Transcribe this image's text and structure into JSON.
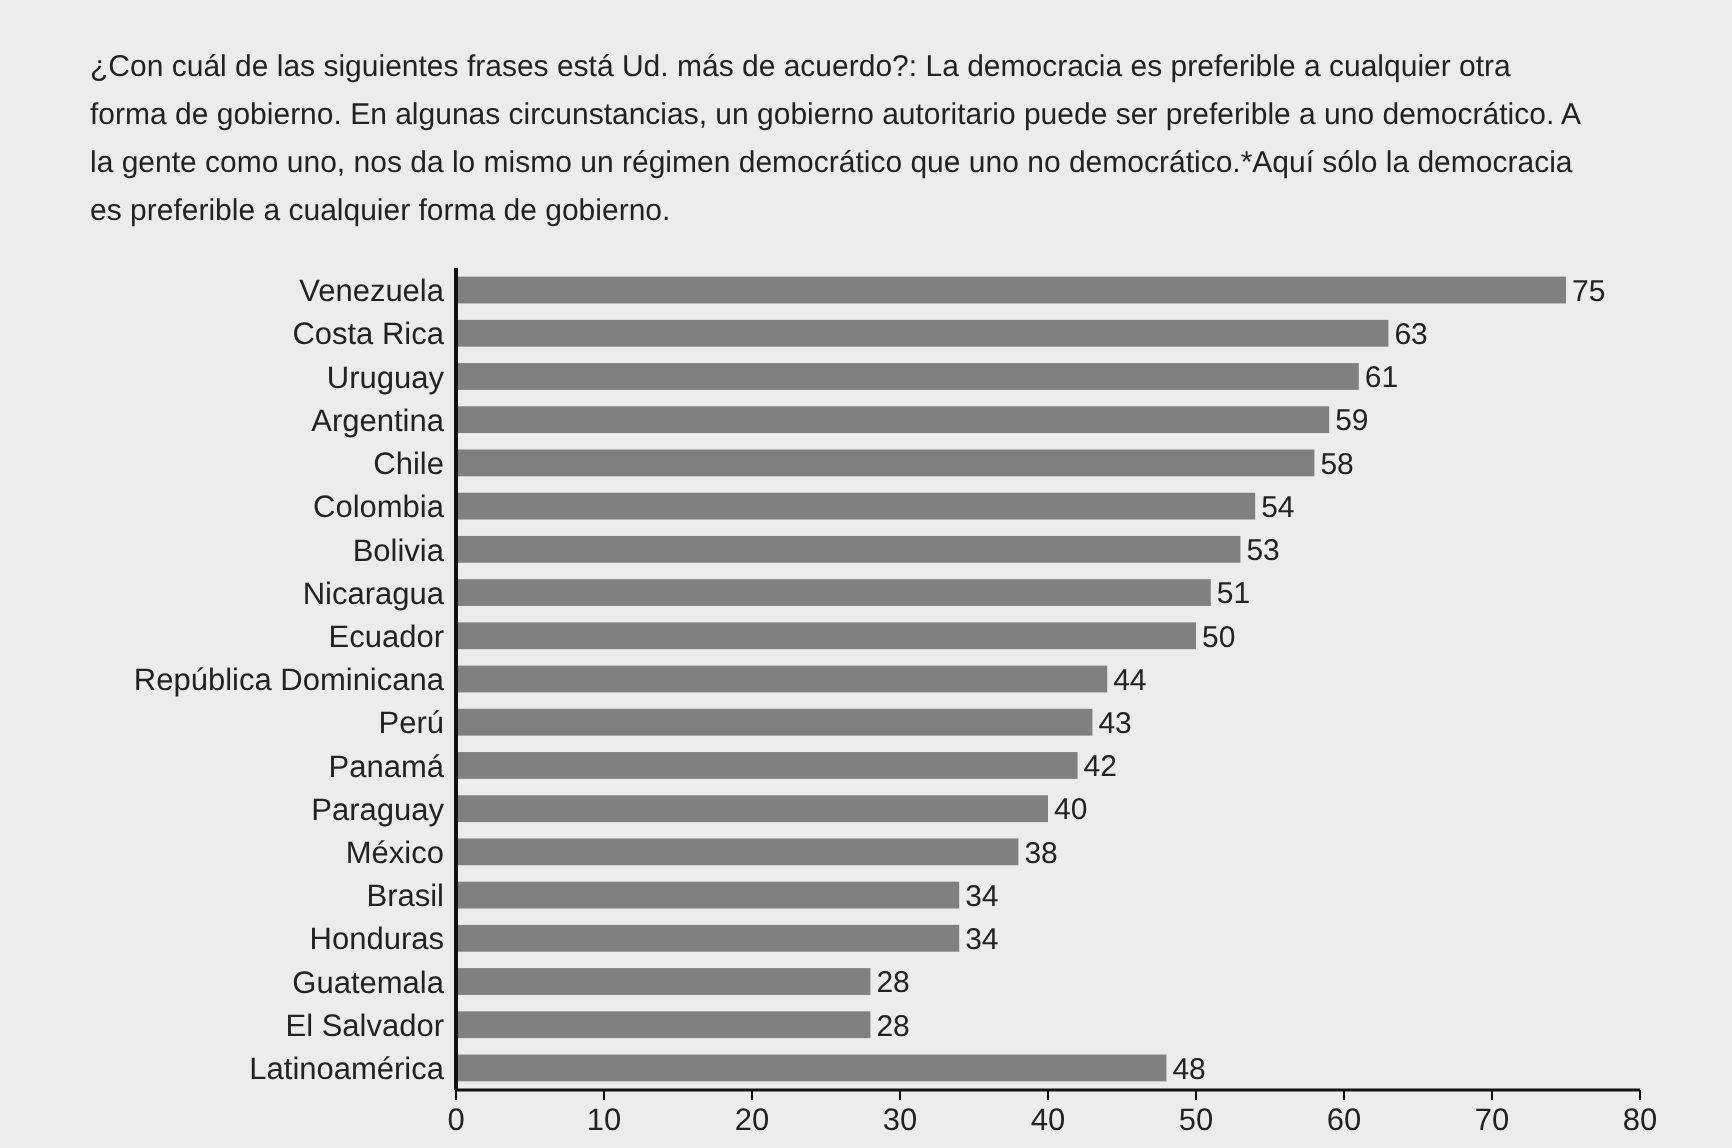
{
  "chart_data": {
    "type": "bar",
    "orientation": "horizontal",
    "title": "¿Con cuál de las siguientes frases está Ud. más de acuerdo?: La democracia es preferible a cualquier otra forma de gobierno. En algunas circunstancias, un gobierno autoritario puede ser preferible a uno democrático. A la gente como uno, nos da lo mismo un régimen democrático que uno no democrático.*Aquí sólo la democracia es preferible a cualquier forma de gobierno.",
    "categories": [
      "Venezuela",
      "Costa Rica",
      "Uruguay",
      "Argentina",
      "Chile",
      "Colombia",
      "Bolivia",
      "Nicaragua",
      "Ecuador",
      "República Dominicana",
      "Perú",
      "Panamá",
      "Paraguay",
      "México",
      "Brasil",
      "Honduras",
      "Guatemala",
      "El Salvador",
      "Latinoamérica"
    ],
    "values": [
      75,
      63,
      61,
      59,
      58,
      54,
      53,
      51,
      50,
      44,
      43,
      42,
      40,
      38,
      34,
      34,
      28,
      28,
      48
    ],
    "color": "#808080",
    "xlim": [
      0,
      80
    ],
    "xticks": [
      0,
      10,
      20,
      30,
      40,
      50,
      60,
      70,
      80
    ],
    "grid": false,
    "data_labels": true
  }
}
